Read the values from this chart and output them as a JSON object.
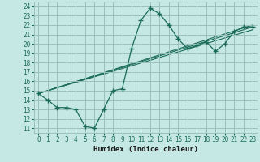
{
  "xlabel": "Humidex (Indice chaleur)",
  "ylabel": "",
  "bg_color": "#c5e8e4",
  "grid_color": "#9bbfba",
  "line_color": "#1a6b5a",
  "xlim": [
    -0.5,
    23.5
  ],
  "ylim": [
    10.5,
    24.5
  ],
  "xticks": [
    0,
    1,
    2,
    3,
    4,
    5,
    6,
    7,
    8,
    9,
    10,
    11,
    12,
    13,
    14,
    15,
    16,
    17,
    18,
    19,
    20,
    21,
    22,
    23
  ],
  "yticks": [
    11,
    12,
    13,
    14,
    15,
    16,
    17,
    18,
    19,
    20,
    21,
    22,
    23,
    24
  ],
  "main_x": [
    0,
    1,
    2,
    3,
    4,
    5,
    6,
    7,
    8,
    9,
    10,
    11,
    12,
    13,
    14,
    15,
    16,
    17,
    18,
    19,
    20,
    21,
    22,
    23
  ],
  "main_y": [
    14.7,
    14.0,
    13.2,
    13.2,
    13.0,
    11.2,
    11.0,
    13.0,
    15.0,
    15.2,
    19.5,
    22.5,
    23.8,
    23.2,
    22.0,
    20.5,
    19.5,
    19.8,
    20.2,
    19.2,
    20.0,
    21.3,
    21.8,
    21.8
  ],
  "trend_lines": [
    {
      "x": [
        0,
        23
      ],
      "y": [
        14.7,
        21.8
      ]
    },
    {
      "x": [
        0,
        23
      ],
      "y": [
        14.7,
        21.5
      ]
    },
    {
      "x": [
        0,
        23
      ],
      "y": [
        14.7,
        22.0
      ]
    }
  ]
}
